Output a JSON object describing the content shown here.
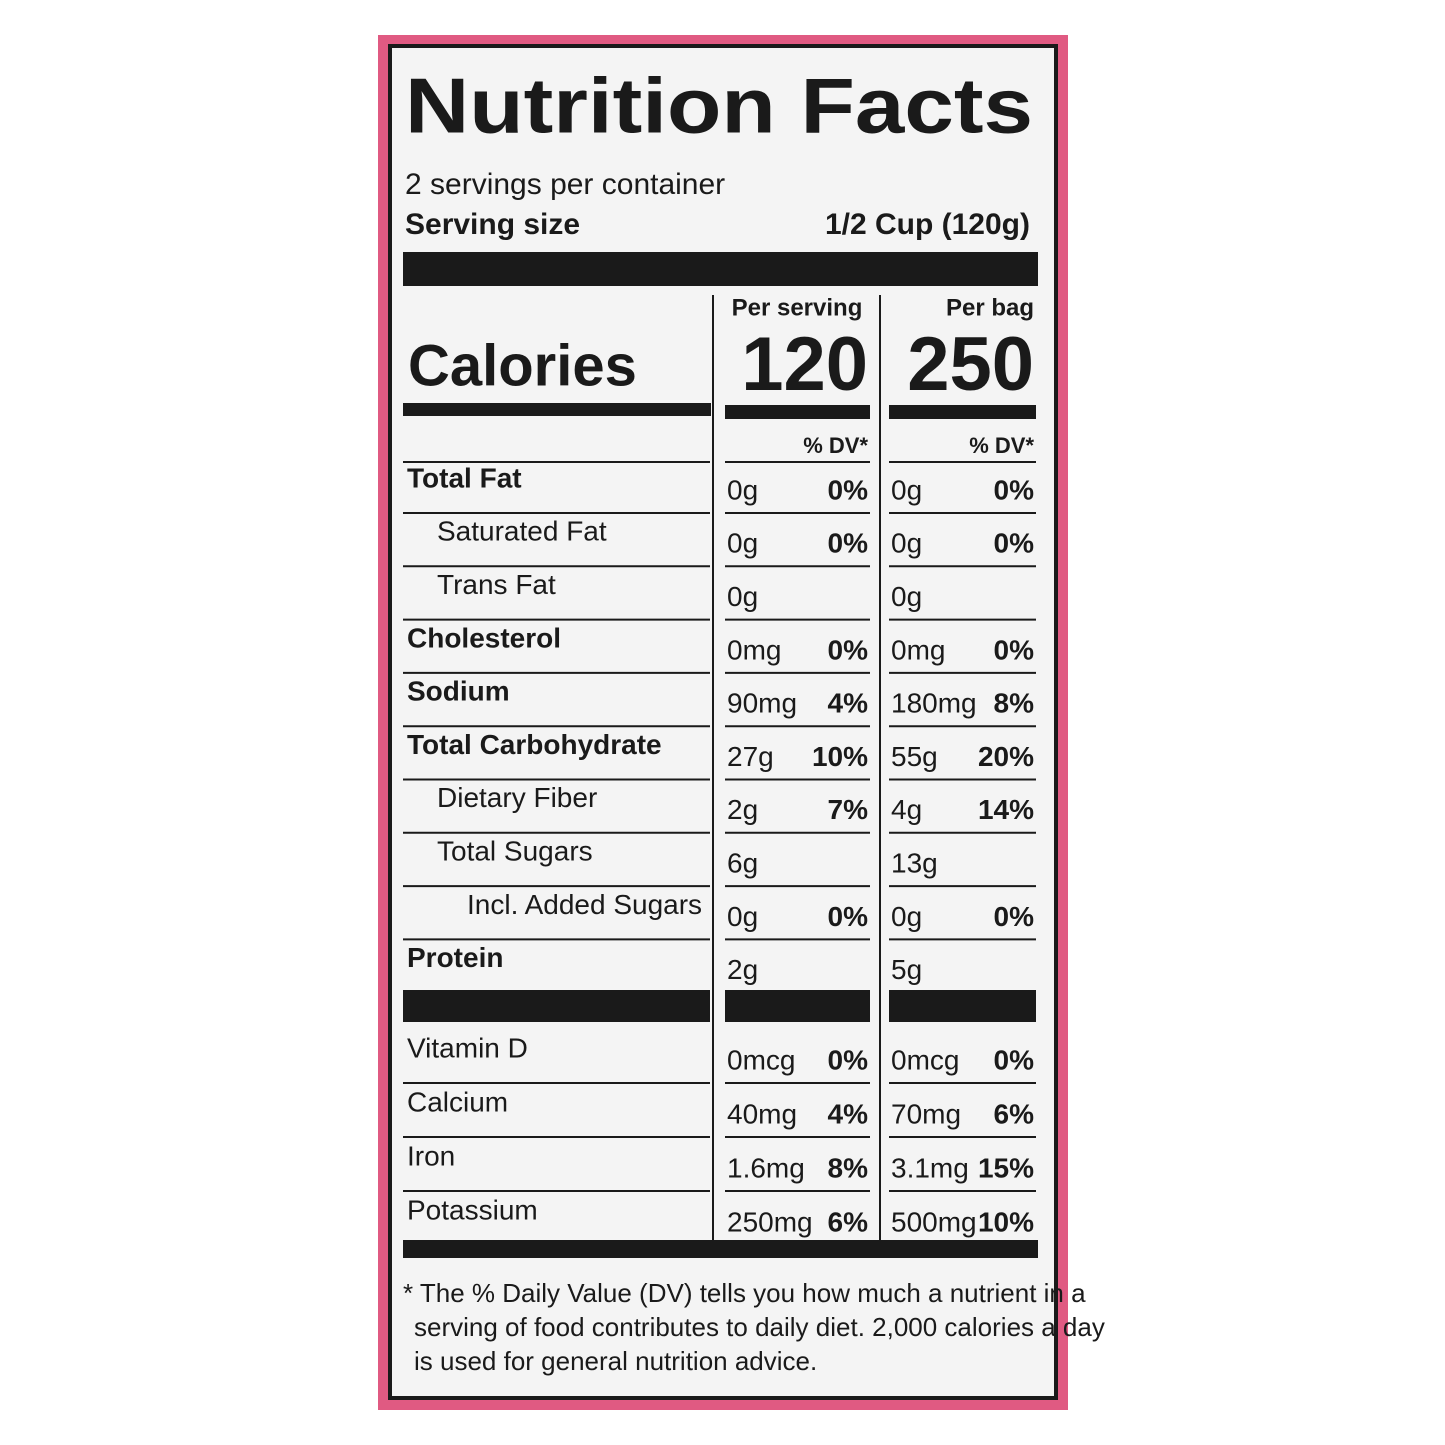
{
  "label": {
    "title": "Nutrition Facts",
    "servings": "2 servings per container",
    "serving_size_label": "Serving size",
    "serving_size_value": "1/2 Cup (120g)",
    "columns": [
      {
        "header": "Per serving",
        "calories": "120",
        "dv_header": "% DV*"
      },
      {
        "header": "Per bag",
        "calories": "250",
        "dv_header": "% DV*"
      }
    ],
    "calories_label": "Calories",
    "nutrients": [
      {
        "label": "Total Fat",
        "bold": true,
        "indent": 0,
        "values": [
          {
            "amount": "0g",
            "dv": "0%"
          },
          {
            "amount": "0g",
            "dv": "0%"
          }
        ]
      },
      {
        "label": "Saturated Fat",
        "bold": false,
        "indent": 1,
        "values": [
          {
            "amount": "0g",
            "dv": "0%"
          },
          {
            "amount": "0g",
            "dv": "0%"
          }
        ]
      },
      {
        "label": "Trans Fat",
        "bold": false,
        "indent": 1,
        "values": [
          {
            "amount": "0g"
          },
          {
            "amount": "0g"
          }
        ]
      },
      {
        "label": "Cholesterol",
        "bold": true,
        "indent": 0,
        "values": [
          {
            "amount": "0mg",
            "dv": "0%"
          },
          {
            "amount": "0mg",
            "dv": "0%"
          }
        ]
      },
      {
        "label": "Sodium",
        "bold": true,
        "indent": 0,
        "values": [
          {
            "amount": "90mg",
            "dv": "4%"
          },
          {
            "amount": "180mg",
            "dv": "8%"
          }
        ]
      },
      {
        "label": "Total Carbohydrate",
        "bold": true,
        "indent": 0,
        "values": [
          {
            "amount": "27g",
            "dv": "10%"
          },
          {
            "amount": "55g",
            "dv": "20%"
          }
        ]
      },
      {
        "label": "Dietary Fiber",
        "bold": false,
        "indent": 1,
        "values": [
          {
            "amount": "2g",
            "dv": "7%"
          },
          {
            "amount": "4g",
            "dv": "14%"
          }
        ]
      },
      {
        "label": "Total Sugars",
        "bold": false,
        "indent": 1,
        "values": [
          {
            "amount": "6g"
          },
          {
            "amount": "13g"
          }
        ]
      },
      {
        "label": "Incl. Added Sugars",
        "bold": false,
        "indent": 2,
        "values": [
          {
            "amount": "0g",
            "dv": "0%"
          },
          {
            "amount": "0g",
            "dv": "0%"
          }
        ]
      },
      {
        "label": "Protein",
        "bold": true,
        "indent": 0,
        "values": [
          {
            "amount": "2g"
          },
          {
            "amount": "5g"
          }
        ]
      }
    ],
    "vitamins": [
      {
        "label": "Vitamin D",
        "values": [
          {
            "amount": "0mcg",
            "dv": "0%"
          },
          {
            "amount": "0mcg",
            "dv": "0%"
          }
        ]
      },
      {
        "label": "Calcium",
        "values": [
          {
            "amount": "40mg",
            "dv": "4%"
          },
          {
            "amount": "70mg",
            "dv": "6%"
          }
        ]
      },
      {
        "label": "Iron",
        "values": [
          {
            "amount": "1.6mg",
            "dv": "8%"
          },
          {
            "amount": "3.1mg",
            "dv": "15%"
          }
        ]
      },
      {
        "label": "Potassium",
        "values": [
          {
            "amount": "250mg",
            "dv": "6%"
          },
          {
            "amount": "500mg",
            "dv": "10%"
          }
        ]
      }
    ],
    "footnote": [
      "* The % Daily Value (DV) tells you how much a nutrient in a",
      "serving of food contributes to daily diet. 2,000 calories a day",
      "is used for general nutrition advice."
    ]
  }
}
